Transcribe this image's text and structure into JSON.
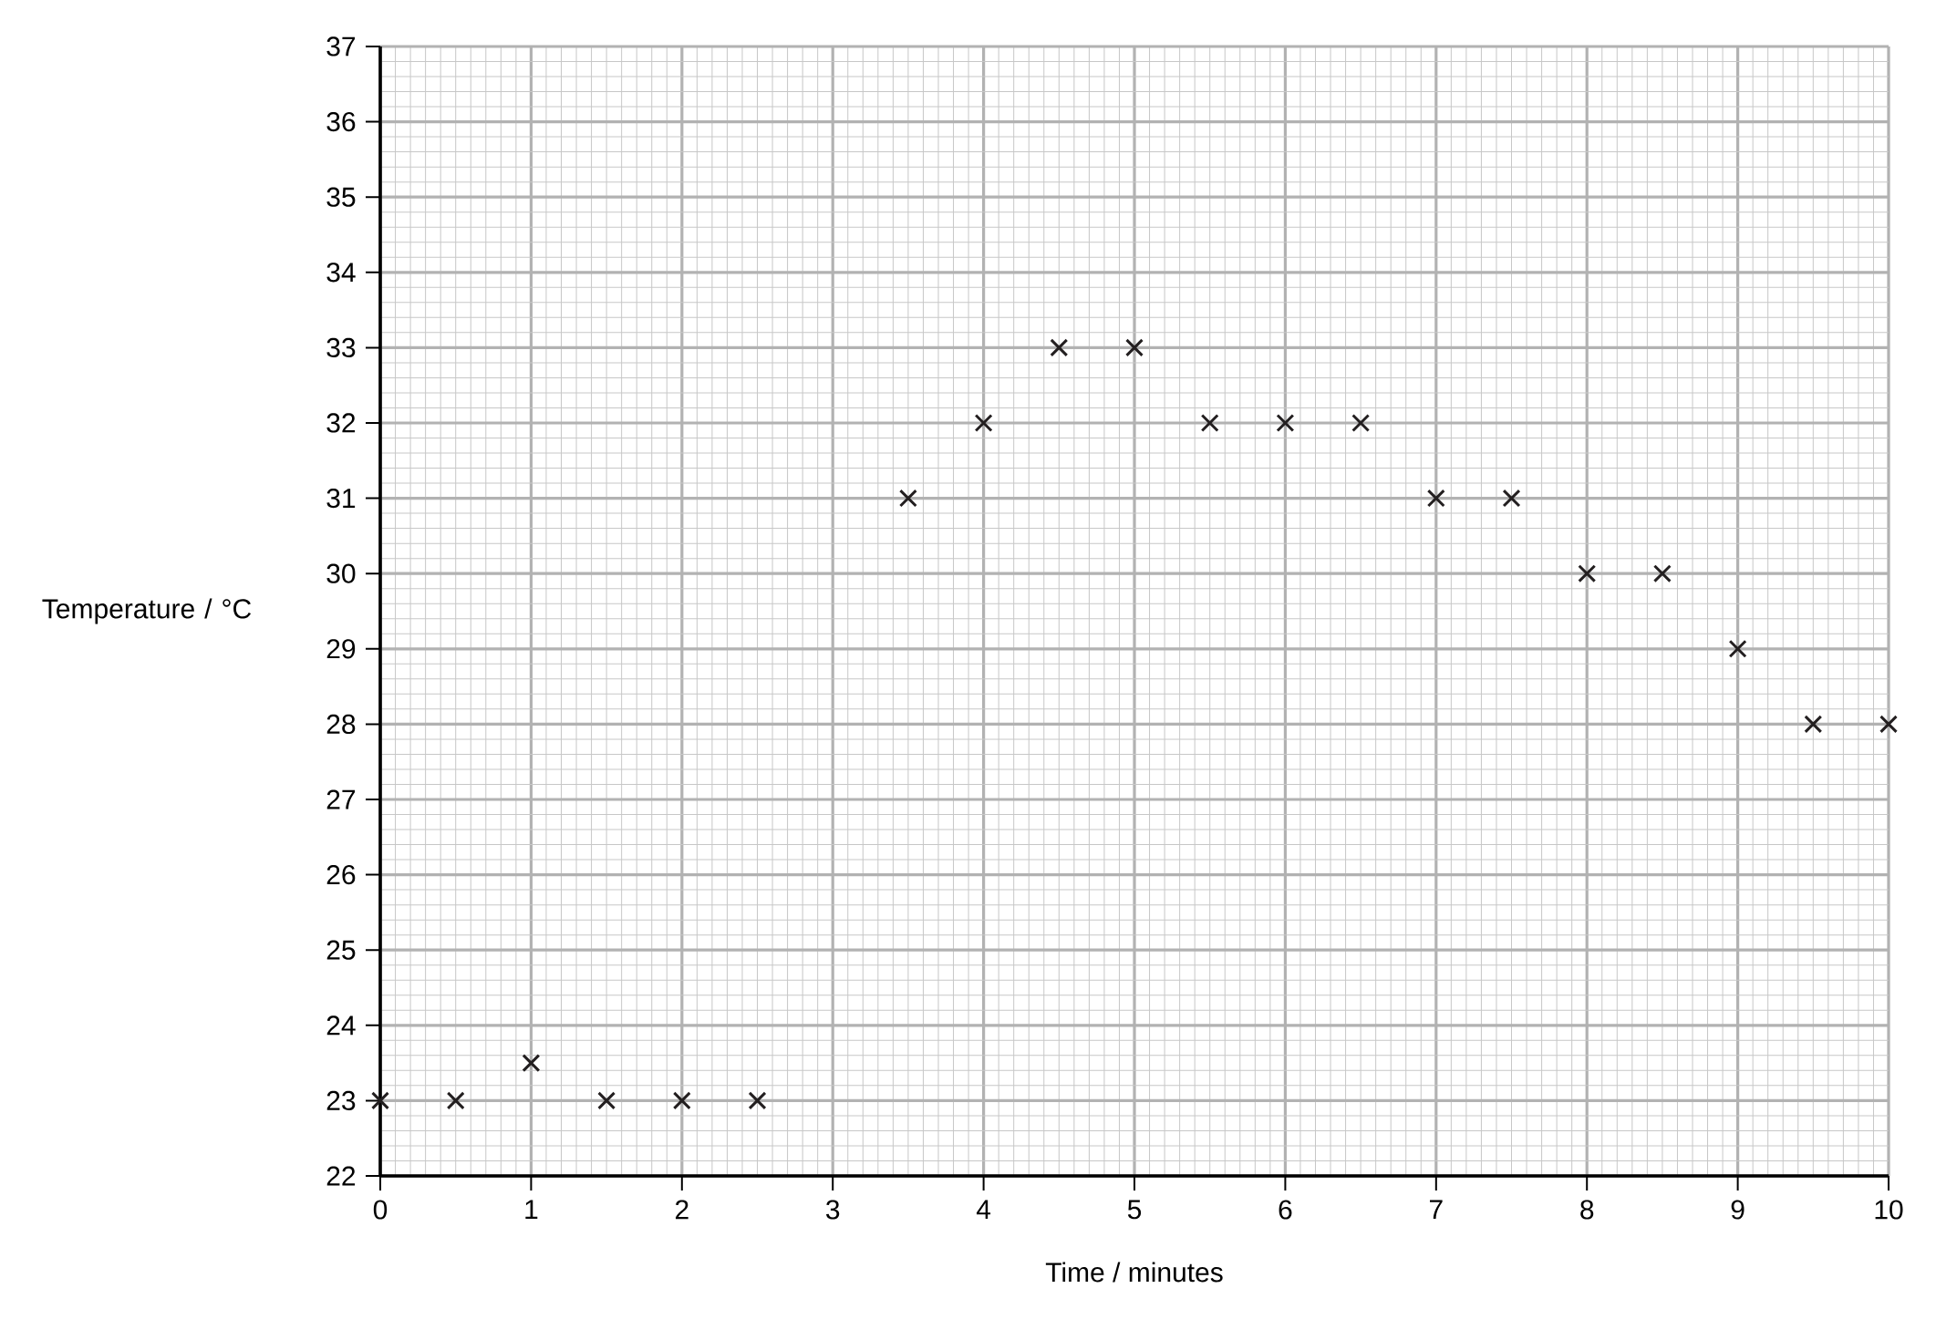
{
  "chart_data": {
    "type": "scatter",
    "xlabel": "Time / minutes",
    "ylabel": "Temperature / °C",
    "x": [
      0,
      0.5,
      1,
      1.5,
      2,
      2.5,
      3.5,
      4,
      4.5,
      5,
      5.5,
      6,
      6.5,
      7,
      7.5,
      8,
      8.5,
      9,
      9.5,
      10
    ],
    "values": [
      23,
      23,
      23.5,
      23,
      23,
      23,
      31,
      32,
      33,
      33,
      32,
      32,
      32,
      31,
      31,
      30,
      30,
      29,
      28,
      28
    ],
    "color": "#231f20",
    "marker": "cross",
    "grid": true,
    "xlim": [
      0,
      10
    ],
    "xticks": [
      0,
      1,
      2,
      3,
      4,
      5,
      6,
      7,
      8,
      9,
      10
    ],
    "ylim": [
      22,
      37
    ],
    "yticks": [
      22,
      23,
      24,
      25,
      26,
      27,
      28,
      29,
      30,
      31,
      32,
      33,
      34,
      35,
      36,
      37
    ]
  }
}
